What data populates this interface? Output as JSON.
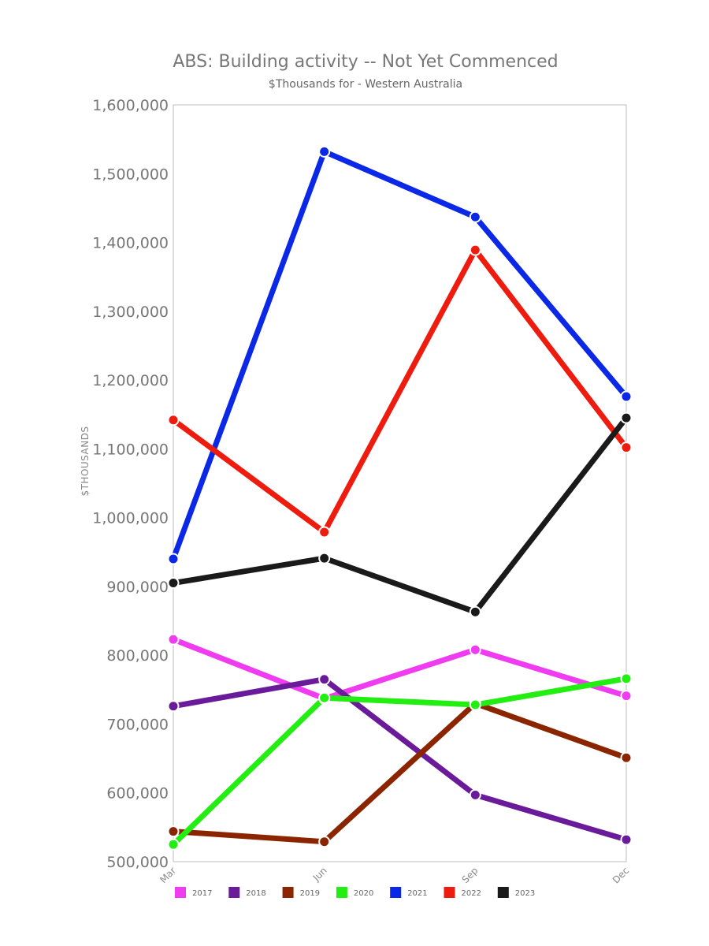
{
  "chart_data": {
    "type": "line",
    "title": "ABS: Building activity -- Not Yet Commenced",
    "subtitle": "$Thousands for - Western Australia",
    "ylabel": "$THOUSANDS",
    "xlabel": "",
    "categories": [
      "Mar",
      "Jun",
      "Sep",
      "Dec"
    ],
    "ylim": [
      500000,
      1600000
    ],
    "yticks": [
      "500,000",
      "600,000",
      "700,000",
      "800,000",
      "900,000",
      "1,000,000",
      "1,100,000",
      "1,200,000",
      "1,300,000",
      "1,400,000",
      "1,500,000",
      "1,600,000"
    ],
    "ytick_values": [
      500000,
      600000,
      700000,
      800000,
      900000,
      1000000,
      1100000,
      1200000,
      1300000,
      1400000,
      1500000,
      1600000
    ],
    "legend_position": "bottom",
    "series": [
      {
        "name": "2017",
        "color": "#f03cf0",
        "values": [
          823000,
          737000,
          808000,
          741000
        ]
      },
      {
        "name": "2018",
        "color": "#6a1b9a",
        "values": [
          726000,
          765000,
          597000,
          532000
        ]
      },
      {
        "name": "2019",
        "color": "#8b2500",
        "values": [
          544000,
          529000,
          730000,
          651000
        ]
      },
      {
        "name": "2020",
        "color": "#22ee11",
        "values": [
          525000,
          738000,
          728000,
          766000
        ]
      },
      {
        "name": "2021",
        "color": "#0a28e6",
        "values": [
          940000,
          1532000,
          1437000,
          1176000
        ]
      },
      {
        "name": "2022",
        "color": "#ee1c0e",
        "values": [
          1142000,
          979000,
          1389000,
          1102000
        ]
      },
      {
        "name": "2023",
        "color": "#1a1a1a",
        "values": [
          905000,
          941000,
          863000,
          1145000
        ]
      }
    ]
  }
}
